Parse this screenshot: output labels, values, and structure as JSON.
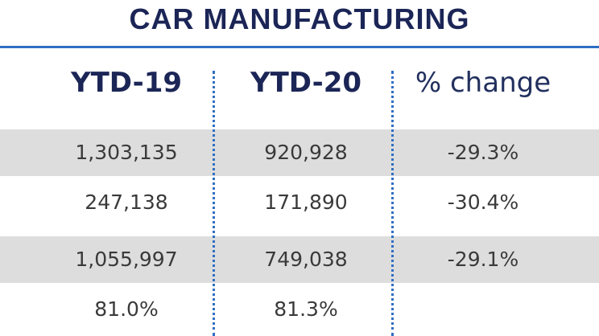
{
  "chart_data": {
    "type": "table",
    "title": "CAR MANUFACTURING",
    "columns": [
      "YTD-19",
      "YTD-20",
      "% change"
    ],
    "rows": [
      [
        "1,303,135",
        "920,928",
        "-29.3%"
      ],
      [
        "247,138",
        "171,890",
        "-30.4%"
      ],
      [
        "1,055,997",
        "749,038",
        "-29.1%"
      ],
      [
        "81.0%",
        "81.3%",
        ""
      ]
    ],
    "shaded_rows": [
      true,
      false,
      true,
      false
    ]
  },
  "colors": {
    "title": "#1b2556",
    "accent": "#2f6fc4",
    "shade": "#dddddd",
    "text": "#3a3a3a"
  }
}
